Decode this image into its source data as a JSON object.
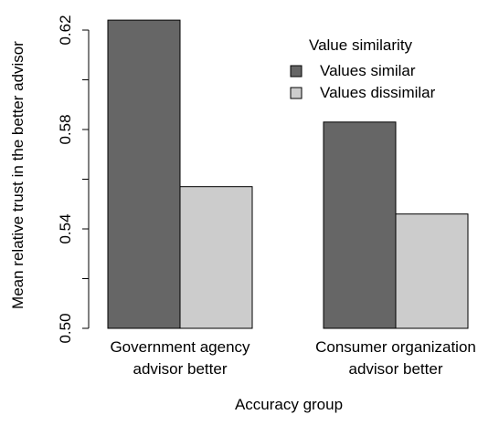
{
  "chart_data": {
    "type": "bar",
    "categories": [
      [
        "Government agency",
        "advisor better"
      ],
      [
        "Consumer organization",
        "advisor better"
      ]
    ],
    "series": [
      {
        "name": "Values similar",
        "values": [
          0.624,
          0.583
        ],
        "color": "#666666"
      },
      {
        "name": "Values dissimilar",
        "values": [
          0.557,
          0.546
        ],
        "color": "#cccccc"
      }
    ],
    "title": "",
    "xlabel": "Accuracy group",
    "ylabel": "Mean relative trust in the better advisor",
    "ylim": [
      0.5,
      0.62
    ],
    "yticks": [
      0.5,
      0.52,
      0.54,
      0.56,
      0.58,
      0.6,
      0.62
    ],
    "ytick_labels": [
      "0.50",
      "",
      "0.54",
      "",
      "0.58",
      "",
      "0.62"
    ],
    "legend": {
      "title": "Value similarity",
      "placement": "top-right"
    },
    "grid": false
  }
}
